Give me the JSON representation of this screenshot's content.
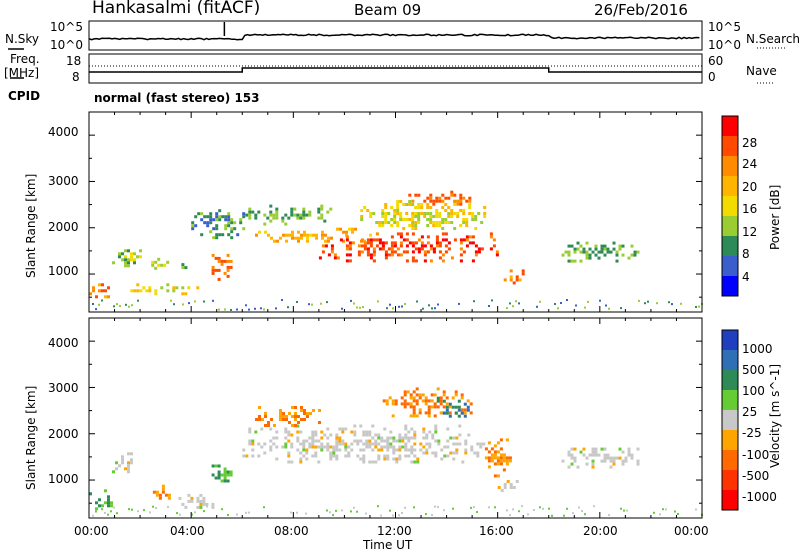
{
  "header": {
    "station": "Hankasalmi (fitACF)",
    "beam": "Beam 09",
    "date": "26/Feb/2016"
  },
  "panels": {
    "noise": {
      "left_label": "N.Sky",
      "right_label": "N.Search",
      "left_ticks": [
        "10^5",
        "10^0"
      ],
      "right_ticks": [
        "10^5",
        "10^0"
      ]
    },
    "freq": {
      "left_label_1": "Freq.",
      "left_label_2": "[MHz]",
      "right_label": "Nave",
      "left_ticks": [
        "18",
        "8"
      ],
      "right_ticks": [
        "60",
        "0"
      ]
    },
    "cpid": {
      "label": "CPID",
      "text": "normal (fast stereo) 153"
    }
  },
  "axes": {
    "y_label": "Slant Range [km]",
    "x_label": "Time UT",
    "y_ticks": [
      "4000",
      "3000",
      "2000",
      "1000"
    ],
    "x_ticks": [
      "00:00",
      "04:00",
      "08:00",
      "12:00",
      "16:00",
      "20:00",
      "00:00"
    ]
  },
  "colorbars": {
    "power": {
      "label": "Power [dB]",
      "ticks": [
        "28",
        "24",
        "20",
        "16",
        "12",
        "8",
        "4"
      ],
      "colors": [
        "#ff0000",
        "#ff4a00",
        "#ff8c00",
        "#ffb400",
        "#f2dc00",
        "#9acd32",
        "#2e8b57",
        "#3a5fcd",
        "#0000ff"
      ]
    },
    "velocity": {
      "label": "Velocity [m s^-1]",
      "ticks": [
        "1000",
        "500",
        "100",
        "25",
        "-25",
        "-100",
        "-500",
        "-1000"
      ],
      "colors": [
        "#1f3fbf",
        "#2e6fb5",
        "#2e8b57",
        "#66cc33",
        "#c8c8c8",
        "#ffa500",
        "#ff6a00",
        "#ff3300",
        "#ff0000"
      ]
    }
  },
  "chart_data": [
    {
      "type": "heatmap",
      "title": "Power",
      "xlabel": "Time UT",
      "ylabel": "Slant Range [km]",
      "xlim": [
        0,
        24
      ],
      "ylim": [
        180,
        4500
      ],
      "colorbar_label": "Power [dB]",
      "colorbar_range": [
        0,
        32
      ],
      "regions": [
        {
          "t": [
            0.0,
            0.9
          ],
          "r": [
            500,
            800
          ],
          "value": 22
        },
        {
          "t": [
            0.9,
            2.0
          ],
          "r": [
            1100,
            1600
          ],
          "value": 10
        },
        {
          "t": [
            2.2,
            3.2
          ],
          "r": [
            1150,
            1350
          ],
          "value": 12
        },
        {
          "t": [
            3.5,
            3.9
          ],
          "r": [
            1150,
            1300
          ],
          "value": 8
        },
        {
          "t": [
            4.8,
            5.6
          ],
          "r": [
            900,
            1500
          ],
          "value": 24
        },
        {
          "t": [
            1.5,
            4.5
          ],
          "r": [
            600,
            800
          ],
          "value": 14
        },
        {
          "t": [
            4.0,
            6.0
          ],
          "r": [
            1800,
            2400
          ],
          "value": 6
        },
        {
          "t": [
            6.0,
            9.5
          ],
          "r": [
            2100,
            2500
          ],
          "value": 8
        },
        {
          "t": [
            6.5,
            11.0
          ],
          "r": [
            1700,
            2000
          ],
          "value": 18
        },
        {
          "t": [
            9.0,
            16.0
          ],
          "r": [
            1300,
            1900
          ],
          "value": 26
        },
        {
          "t": [
            10.5,
            15.5
          ],
          "r": [
            2000,
            2600
          ],
          "value": 14
        },
        {
          "t": [
            12.5,
            15.0
          ],
          "r": [
            2500,
            2800
          ],
          "value": 24
        },
        {
          "t": [
            16.0,
            17.0
          ],
          "r": [
            800,
            1100
          ],
          "value": 22
        },
        {
          "t": [
            18.5,
            21.5
          ],
          "r": [
            1300,
            1700
          ],
          "value": 8
        }
      ]
    },
    {
      "type": "heatmap",
      "title": "Velocity",
      "xlabel": "Time UT",
      "ylabel": "Slant Range [km]",
      "xlim": [
        0,
        24
      ],
      "ylim": [
        180,
        4500
      ],
      "colorbar_label": "Velocity [m s^-1]",
      "colorbar_range": [
        -1000,
        1000
      ],
      "regions": [
        {
          "t": [
            0.0,
            0.9
          ],
          "r": [
            400,
            800
          ],
          "value": 100
        },
        {
          "t": [
            0.9,
            1.8
          ],
          "r": [
            1200,
            1600
          ],
          "value": 0
        },
        {
          "t": [
            2.5,
            3.2
          ],
          "r": [
            600,
            900
          ],
          "value": -100
        },
        {
          "t": [
            3.5,
            5.0
          ],
          "r": [
            400,
            700
          ],
          "value": 0
        },
        {
          "t": [
            4.8,
            5.6
          ],
          "r": [
            900,
            1400
          ],
          "value": 100
        },
        {
          "t": [
            6.0,
            15.5
          ],
          "r": [
            1400,
            2200
          ],
          "value": 0
        },
        {
          "t": [
            6.5,
            9.0
          ],
          "r": [
            2200,
            2600
          ],
          "value": -100
        },
        {
          "t": [
            11.5,
            15.0
          ],
          "r": [
            2400,
            3000
          ],
          "value": -100
        },
        {
          "t": [
            13.5,
            14.8
          ],
          "r": [
            2400,
            2800
          ],
          "value": 500
        },
        {
          "t": [
            15.5,
            16.5
          ],
          "r": [
            1100,
            1900
          ],
          "value": -100
        },
        {
          "t": [
            16.0,
            17.0
          ],
          "r": [
            800,
            1000
          ],
          "value": 0
        },
        {
          "t": [
            18.5,
            21.5
          ],
          "r": [
            1300,
            1700
          ],
          "value": 0
        }
      ]
    }
  ]
}
